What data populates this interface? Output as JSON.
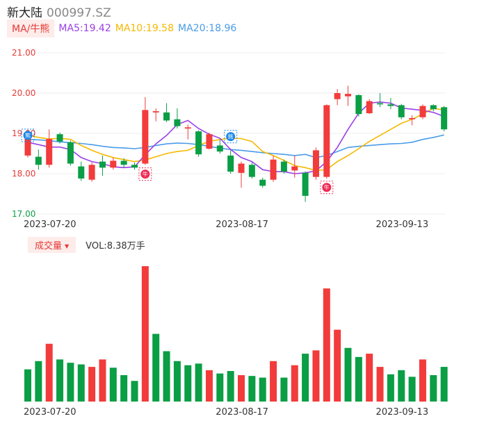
{
  "header": {
    "name": "新大陆",
    "code": "000997.SZ"
  },
  "ma": {
    "tag": "MA/牛熊",
    "ma5": "MA5:19.42",
    "ma10": "MA10:19.58",
    "ma20": "MA20:18.96"
  },
  "volume": {
    "tag": "成交量",
    "caret": "▼",
    "value": "VOL:8.38万手"
  },
  "badges": {
    "bull": "牛",
    "bear": "熊"
  },
  "colors": {
    "up": "#f23b3b",
    "down": "#0a9e45",
    "ma5": "#9a3fe6",
    "ma10": "#f5b800",
    "ma20": "#4a9ce8",
    "grid": "#eeeeee",
    "price_label": "#e53935",
    "price_label_low": "#0a9e45"
  },
  "chart_data": [
    {
      "type": "candlestick",
      "ylim": [
        17.0,
        21.0
      ],
      "y_ticks": [
        "21.00",
        "20.00",
        "19.00",
        "18.00",
        "17.00"
      ],
      "x_ticks": [
        {
          "label": "2023-07-20",
          "index": 0
        },
        {
          "label": "2023-08-17",
          "index": 18
        },
        {
          "label": "2023-09-13",
          "index": 33
        }
      ],
      "ohlc": [
        [
          18.45,
          18.88,
          18.4,
          18.92
        ],
        [
          18.42,
          18.22,
          18.1,
          18.6
        ],
        [
          18.22,
          18.86,
          18.15,
          19.1
        ],
        [
          18.98,
          18.8,
          18.75,
          19.02
        ],
        [
          18.78,
          18.25,
          18.2,
          18.82
        ],
        [
          18.18,
          17.88,
          17.82,
          18.3
        ],
        [
          17.85,
          18.22,
          17.8,
          18.28
        ],
        [
          18.3,
          18.15,
          17.95,
          18.45
        ],
        [
          18.15,
          18.32,
          18.1,
          18.4
        ],
        [
          18.32,
          18.22,
          18.15,
          18.38
        ],
        [
          18.22,
          18.15,
          18.1,
          18.28
        ],
        [
          18.25,
          19.58,
          18.22,
          19.9
        ],
        [
          19.52,
          19.55,
          19.3,
          19.62
        ],
        [
          19.52,
          19.32,
          19.28,
          19.75
        ],
        [
          19.35,
          19.18,
          19.12,
          19.62
        ],
        [
          19.12,
          19.15,
          18.85,
          19.22
        ],
        [
          19.05,
          18.48,
          18.42,
          19.08
        ],
        [
          18.62,
          18.98,
          18.6,
          19.02
        ],
        [
          18.7,
          18.55,
          18.5,
          18.85
        ],
        [
          18.45,
          18.05,
          18.0,
          18.58
        ],
        [
          18.02,
          18.25,
          17.65,
          18.3
        ],
        [
          18.22,
          17.92,
          17.88,
          18.28
        ],
        [
          17.85,
          17.7,
          17.65,
          17.9
        ],
        [
          17.85,
          18.35,
          17.8,
          18.45
        ],
        [
          18.3,
          18.05,
          18.0,
          18.35
        ],
        [
          18.08,
          18.18,
          17.9,
          18.45
        ],
        [
          18.02,
          17.45,
          17.3,
          18.06
        ],
        [
          17.92,
          18.58,
          17.85,
          18.65
        ],
        [
          17.92,
          19.7,
          17.88,
          19.72
        ],
        [
          19.85,
          20.0,
          19.7,
          20.1
        ],
        [
          19.92,
          19.98,
          19.68,
          20.18
        ],
        [
          19.95,
          19.48,
          19.42,
          19.97
        ],
        [
          19.5,
          19.8,
          19.48,
          19.85
        ],
        [
          19.75,
          19.72,
          19.65,
          20.0
        ],
        [
          19.72,
          19.68,
          19.6,
          19.88
        ],
        [
          19.7,
          19.4,
          19.35,
          19.73
        ],
        [
          19.35,
          19.38,
          19.2,
          19.45
        ],
        [
          19.4,
          19.68,
          19.35,
          19.72
        ],
        [
          19.7,
          19.6,
          19.55,
          19.72
        ],
        [
          19.65,
          19.1,
          19.05,
          19.68
        ]
      ],
      "ma5": [
        18.78,
        18.72,
        18.66,
        18.66,
        18.6,
        18.4,
        18.3,
        18.25,
        18.17,
        18.15,
        18.17,
        18.47,
        18.74,
        18.95,
        19.22,
        19.32,
        19.12,
        18.98,
        18.88,
        18.6,
        18.4,
        18.3,
        18.1,
        18.05,
        18.05,
        18.0,
        18.02,
        18.07,
        18.3,
        18.65,
        19.1,
        19.5,
        19.75,
        19.78,
        19.75,
        19.63,
        19.6,
        19.57,
        19.52,
        19.42
      ],
      "ma10": [
        18.95,
        18.9,
        18.86,
        18.88,
        18.85,
        18.7,
        18.58,
        18.48,
        18.4,
        18.35,
        18.3,
        18.34,
        18.42,
        18.5,
        18.55,
        18.58,
        18.7,
        18.8,
        18.85,
        18.88,
        18.87,
        18.8,
        18.55,
        18.45,
        18.33,
        18.2,
        18.15,
        18.08,
        18.1,
        18.3,
        18.45,
        18.62,
        18.8,
        18.95,
        19.1,
        19.25,
        19.35,
        19.48,
        19.62,
        19.58
      ],
      "ma20": [
        18.85,
        18.84,
        18.82,
        18.79,
        18.77,
        18.75,
        18.72,
        18.68,
        18.65,
        18.64,
        18.62,
        18.65,
        18.7,
        18.74,
        18.76,
        18.75,
        18.72,
        18.68,
        18.63,
        18.6,
        18.58,
        18.55,
        18.52,
        18.5,
        18.48,
        18.45,
        18.48,
        18.4,
        18.45,
        18.55,
        18.65,
        18.68,
        18.7,
        18.72,
        18.74,
        18.75,
        18.78,
        18.85,
        18.9,
        18.96
      ],
      "markers": [
        {
          "index": 0,
          "kind": "bear",
          "price": 18.95
        },
        {
          "index": 11,
          "kind": "bull",
          "price": 17.99
        },
        {
          "index": 19,
          "kind": "bear",
          "price": 18.92
        },
        {
          "index": 28,
          "kind": "bull",
          "price": 17.66
        }
      ]
    },
    {
      "type": "bar",
      "x_ticks": [
        {
          "label": "2023-07-20",
          "index": 0
        },
        {
          "label": "2023-08-17",
          "index": 18
        },
        {
          "label": "2023-09-13",
          "index": 33
        }
      ],
      "values": [
        39,
        49,
        70,
        51,
        47,
        45,
        42,
        51,
        41,
        32,
        25,
        164,
        82,
        61,
        49,
        44,
        46,
        38,
        34,
        37,
        32,
        31,
        29,
        49,
        29,
        44,
        58,
        62,
        137,
        87,
        65,
        54,
        58,
        42,
        33,
        38,
        30,
        51,
        32,
        42
      ],
      "up": [
        false,
        false,
        true,
        false,
        false,
        false,
        true,
        true,
        false,
        false,
        false,
        true,
        false,
        false,
        false,
        false,
        false,
        true,
        false,
        false,
        true,
        false,
        false,
        true,
        false,
        true,
        false,
        true,
        true,
        true,
        false,
        false,
        true,
        true,
        false,
        false,
        false,
        true,
        false,
        false
      ],
      "ymax": 170
    }
  ]
}
